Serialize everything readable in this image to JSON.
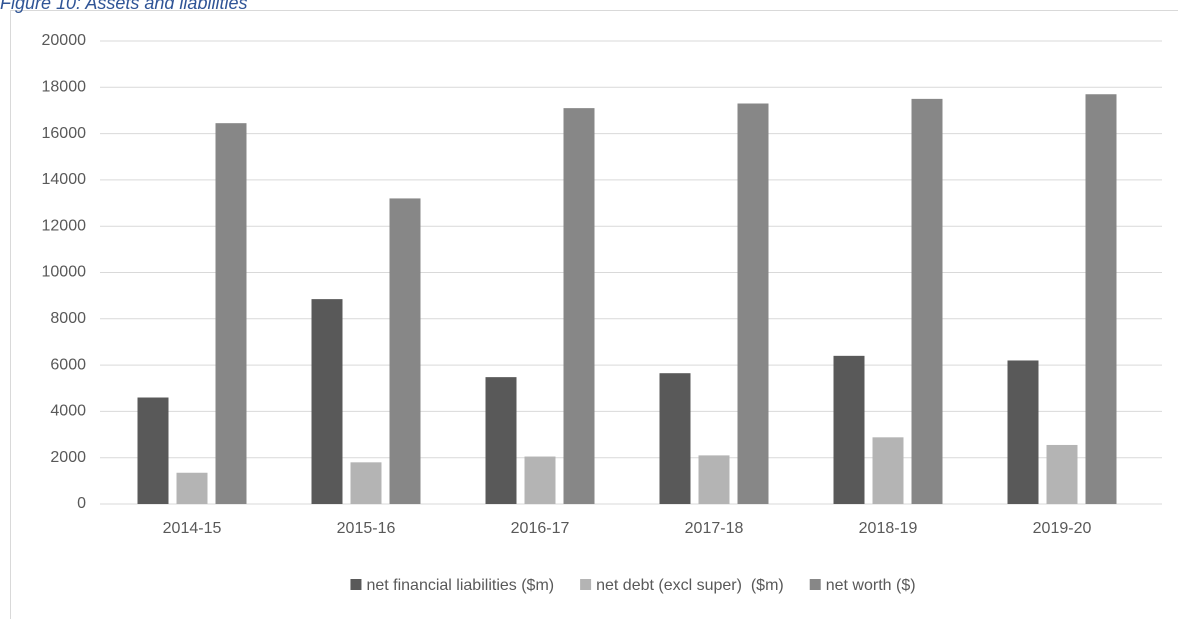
{
  "chart_data": {
    "type": "bar",
    "title": "Figure 10: Assets and liabilities",
    "categories": [
      "2014-15",
      "2015-16",
      "2016-17",
      "2017-18",
      "2018-19",
      "2019-20"
    ],
    "series": [
      {
        "name": "net financial liabilities ($m)",
        "color": "#595959",
        "values": [
          4600,
          8850,
          5480,
          5650,
          6400,
          6200
        ]
      },
      {
        "name": "net debt (excl super)  ($m)",
        "color": "#b4b4b4",
        "values": [
          1350,
          1800,
          2050,
          2100,
          2880,
          2550
        ]
      },
      {
        "name": "net worth ($)",
        "color": "#878787",
        "values": [
          16450,
          13200,
          17100,
          17300,
          17500,
          17700
        ]
      }
    ],
    "ylim": [
      0,
      20000
    ],
    "yticks": [
      0,
      2000,
      4000,
      6000,
      8000,
      10000,
      12000,
      14000,
      16000,
      18000,
      20000
    ],
    "grid": true,
    "legend": "bottom"
  }
}
